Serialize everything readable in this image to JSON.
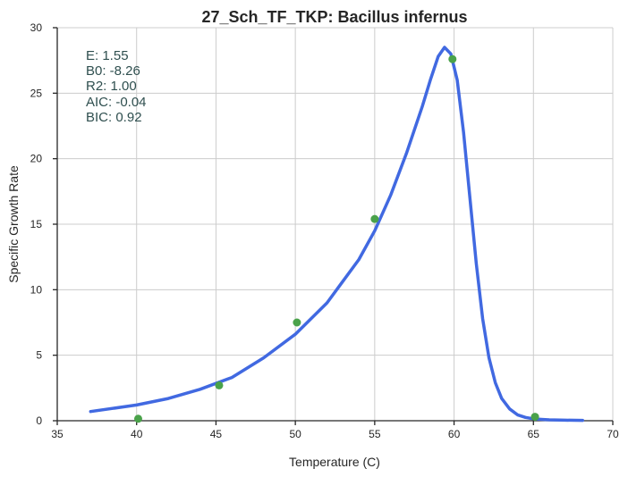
{
  "chart_data": {
    "type": "scatter",
    "title": "27_Sch_TF_TKP: Bacillus infernus",
    "xlabel": "Temperature (C)",
    "ylabel": "Specific Growth Rate",
    "xlim": [
      35,
      70
    ],
    "ylim": [
      0,
      30
    ],
    "xticks": [
      "35",
      "40",
      "45",
      "50",
      "55",
      "60",
      "65",
      "70"
    ],
    "yticks": [
      "0",
      "5",
      "10",
      "15",
      "20",
      "25",
      "30"
    ],
    "grid": true,
    "stats_text": [
      "E:  1.55",
      "B0:  -8.26",
      "R2:  1.00",
      "AIC: -0.04",
      "BIC: 0.92"
    ],
    "colors": {
      "points": "#4aa24a",
      "fit": "#4169e1"
    },
    "points": {
      "x": [
        40.1,
        45.2,
        50.1,
        55.0,
        59.9,
        65.1
      ],
      "y": [
        0.15,
        2.7,
        7.5,
        15.4,
        27.6,
        0.3
      ]
    },
    "fit_curve": {
      "x": [
        37.1,
        40,
        42,
        44,
        46,
        48,
        50,
        52,
        54,
        55,
        56,
        57,
        58,
        58.5,
        59,
        59.4,
        59.8,
        60.2,
        60.6,
        61,
        61.4,
        61.8,
        62.2,
        62.6,
        63,
        63.5,
        64,
        64.5,
        65,
        65.5,
        66,
        67,
        68.1
      ],
      "y": [
        0.7,
        1.2,
        1.7,
        2.4,
        3.3,
        4.8,
        6.6,
        9.0,
        12.3,
        14.5,
        17.2,
        20.4,
        24.0,
        26.0,
        27.8,
        28.5,
        28.0,
        26.0,
        22.0,
        17.0,
        12.0,
        7.8,
        4.8,
        2.9,
        1.7,
        0.9,
        0.45,
        0.25,
        0.15,
        0.1,
        0.07,
        0.04,
        0.03
      ]
    }
  }
}
